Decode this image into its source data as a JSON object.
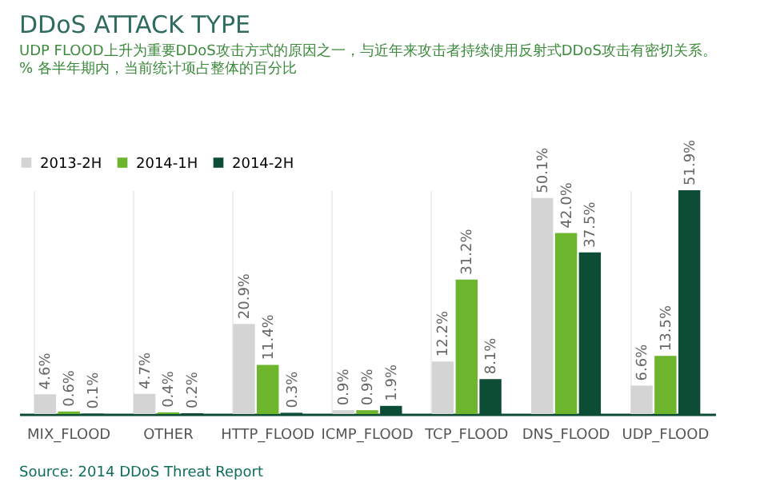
{
  "chart_data": {
    "type": "bar",
    "title": "DDoS ATTACK TYPE",
    "subtitle": "UDP FLOOD上升为重要DDoS攻击方式的原因之一，与近年来攻击者持续使用反射式DDoS攻击有密切关系。\n% 各半年期内，当前统计项占整体的百分比",
    "categories": [
      "MIX_FLOOD",
      "OTHER",
      "HTTP_FLOOD",
      "ICMP_FLOOD",
      "TCP_FLOOD",
      "DNS_FLOOD",
      "UDP_FLOOD"
    ],
    "series": [
      {
        "name": "2013-2H",
        "color": "#d4d4d4",
        "values": [
          4.6,
          4.7,
          20.9,
          0.9,
          12.2,
          50.1,
          6.6
        ],
        "value_labels": [
          "4.6%",
          "4.7%",
          "20.9%",
          "0.9%",
          "12.2%",
          "50.1%",
          "6.6%"
        ]
      },
      {
        "name": "2014-1H",
        "color": "#6cb52d",
        "values": [
          0.6,
          0.4,
          11.4,
          0.9,
          31.2,
          42.0,
          13.5
        ],
        "value_labels": [
          "0.6%",
          "0.4%",
          "11.4%",
          "0.9%",
          "31.2%",
          "42.0%",
          "13.5%"
        ]
      },
      {
        "name": "2014-2H",
        "color": "#0e4d35",
        "values": [
          0.1,
          0.2,
          0.3,
          1.9,
          8.1,
          37.5,
          51.9
        ],
        "value_labels": [
          "0.1%",
          "0.2%",
          "0.3%",
          "1.9%",
          "8.1%",
          "37.5%",
          "51.9%"
        ]
      }
    ],
    "legend": "top left",
    "grid": "x",
    "annotations": [
      "Source: 2014 DDoS Threat Report"
    ]
  }
}
